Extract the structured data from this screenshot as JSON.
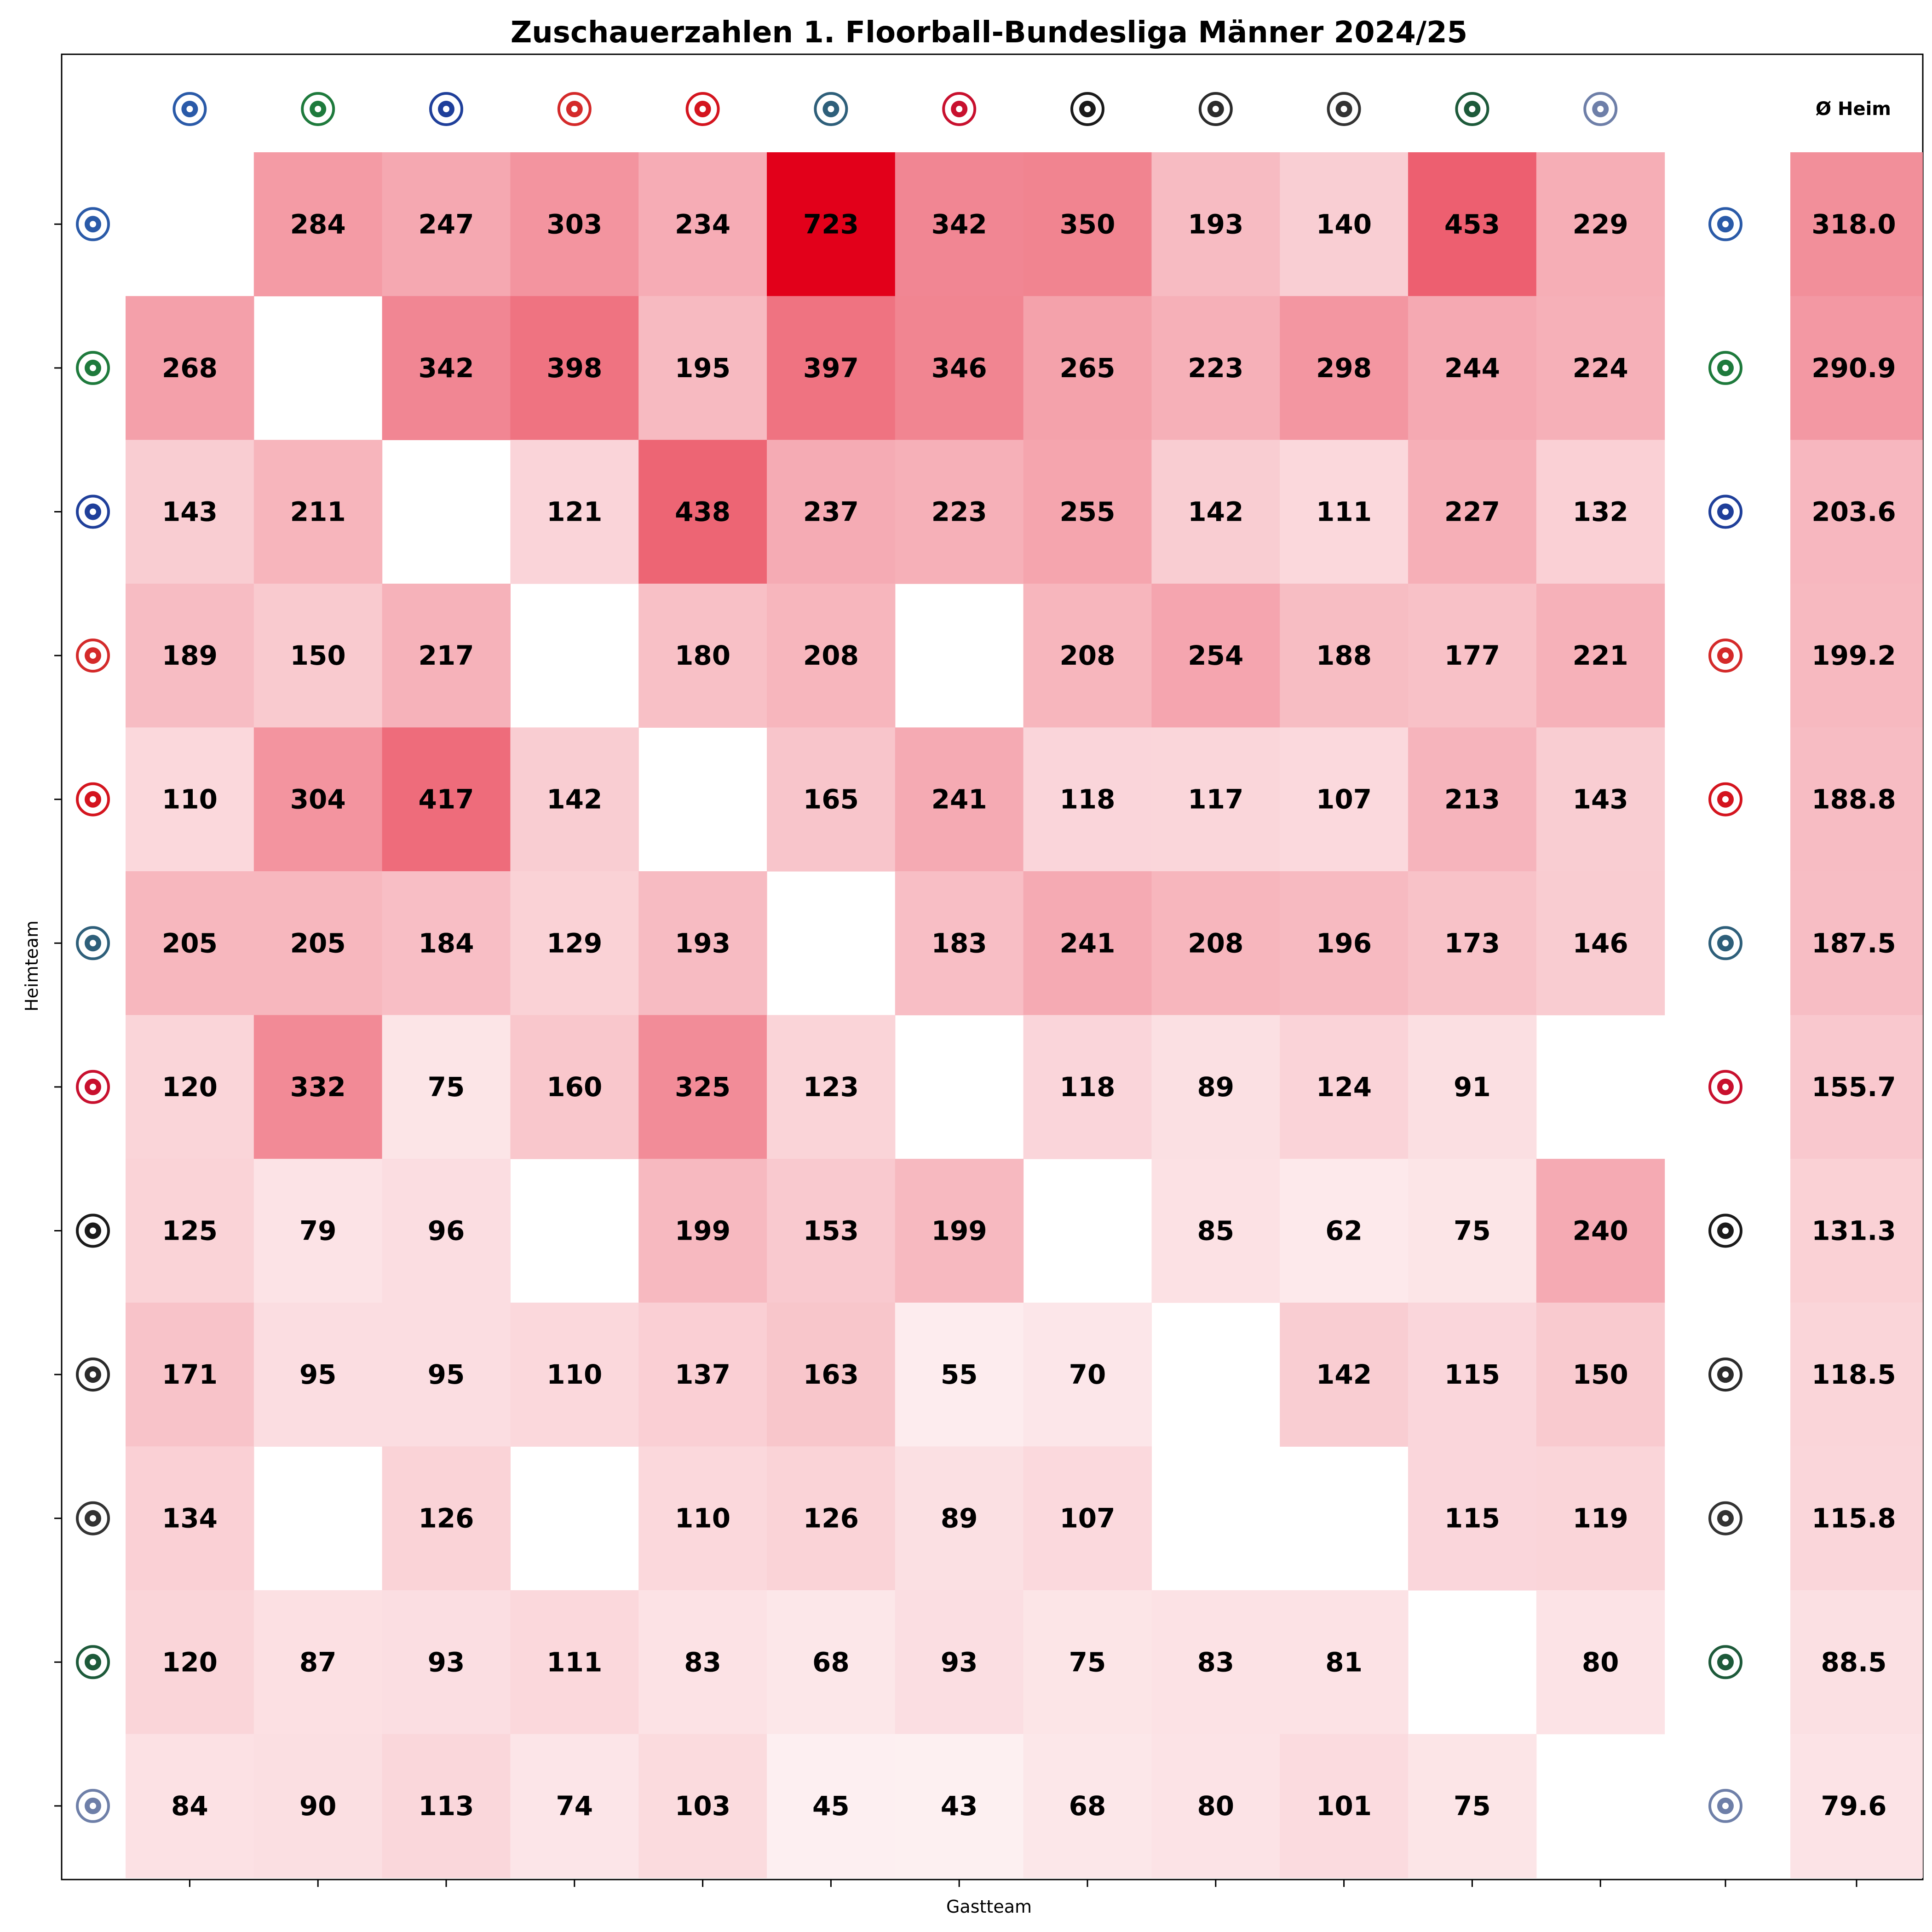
{
  "chart_data": {
    "type": "heatmap",
    "title": "Zuschauerzahlen 1. Floorball-Bundesliga Männer 2024/25",
    "xlabel": "Gastteam",
    "ylabel": "Heimteam",
    "average_column_label": "Ø Heim",
    "color_scale": {
      "min_color": "#ffffff",
      "max_color": "#e2001a",
      "min": 0,
      "max": 723
    },
    "grid": false,
    "teams": [
      {
        "icon": "team-logo-1-icon",
        "color": "#2a5aa8"
      },
      {
        "icon": "team-logo-2-icon",
        "color": "#1e7a3c"
      },
      {
        "icon": "team-logo-3-icon",
        "color": "#1f3f9a"
      },
      {
        "icon": "team-logo-4-icon",
        "color": "#d42a2a"
      },
      {
        "icon": "team-logo-5-icon",
        "color": "#d4141e"
      },
      {
        "icon": "team-logo-6-icon",
        "color": "#2e5f7a"
      },
      {
        "icon": "team-logo-7-icon",
        "color": "#c8102e"
      },
      {
        "icon": "team-logo-8-icon",
        "color": "#1a1a1a"
      },
      {
        "icon": "team-logo-9-icon",
        "color": "#2b2b2b"
      },
      {
        "icon": "team-logo-10-icon",
        "color": "#333333"
      },
      {
        "icon": "team-logo-11-icon",
        "color": "#1d5a3a"
      },
      {
        "icon": "team-logo-12-icon",
        "color": "#6e7fa8"
      }
    ],
    "values": [
      [
        null,
        284,
        247,
        303,
        234,
        723,
        342,
        350,
        193,
        140,
        453,
        229
      ],
      [
        268,
        null,
        342,
        398,
        195,
        397,
        346,
        265,
        223,
        298,
        244,
        224
      ],
      [
        143,
        211,
        null,
        121,
        438,
        237,
        223,
        255,
        142,
        111,
        227,
        132
      ],
      [
        189,
        150,
        217,
        null,
        180,
        208,
        null,
        208,
        254,
        188,
        177,
        221
      ],
      [
        110,
        304,
        417,
        142,
        null,
        165,
        241,
        118,
        117,
        107,
        213,
        143
      ],
      [
        205,
        205,
        184,
        129,
        193,
        null,
        183,
        241,
        208,
        196,
        173,
        146
      ],
      [
        120,
        332,
        75,
        160,
        325,
        123,
        null,
        118,
        89,
        124,
        91,
        null
      ],
      [
        125,
        79,
        96,
        null,
        199,
        153,
        199,
        null,
        85,
        62,
        75,
        240
      ],
      [
        171,
        95,
        95,
        110,
        137,
        163,
        55,
        70,
        null,
        142,
        115,
        150
      ],
      [
        134,
        null,
        126,
        null,
        110,
        126,
        89,
        107,
        null,
        null,
        115,
        119
      ],
      [
        120,
        87,
        93,
        111,
        83,
        68,
        93,
        75,
        83,
        81,
        null,
        80
      ],
      [
        84,
        90,
        113,
        74,
        103,
        45,
        43,
        68,
        80,
        101,
        75,
        null
      ]
    ],
    "home_averages": [
      "318.0",
      "290.9",
      "203.6",
      "199.2",
      "188.8",
      "187.5",
      "155.7",
      "131.3",
      "118.5",
      "115.8",
      "88.5",
      "79.6"
    ]
  }
}
